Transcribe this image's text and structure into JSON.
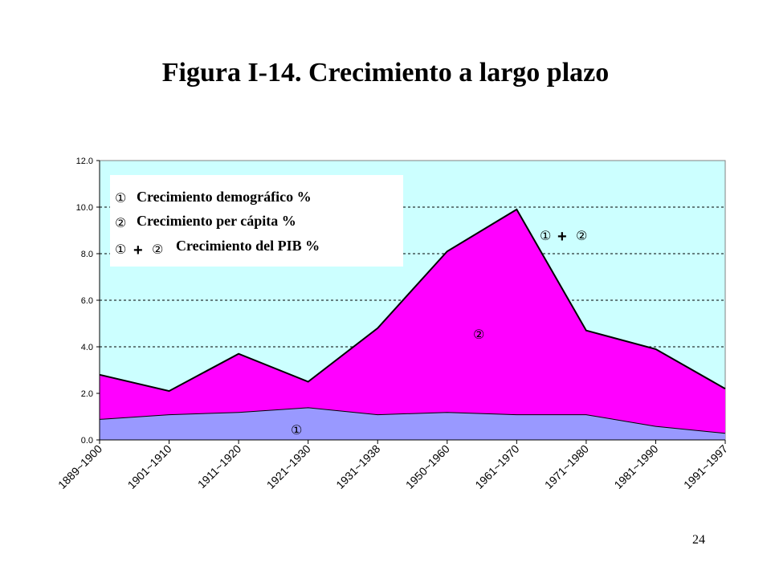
{
  "page": {
    "title": "Figura I-14. Crecimiento a largo plazo",
    "page_number": "24"
  },
  "chart_data": {
    "type": "area",
    "stacked": true,
    "title": "Figura I-14. Crecimiento a largo plazo",
    "xlabel": "",
    "ylabel": "",
    "ylim": [
      0,
      12
    ],
    "yticks": [
      "0.0",
      "2.0",
      "4.0",
      "6.0",
      "8.0",
      "10.0",
      "12.0"
    ],
    "grid": "horizontal dashed",
    "categories": [
      "1889~1900",
      "1901~1910",
      "1911~1920",
      "1921~1930",
      "1931~1938",
      "1950~1960",
      "1961~1970",
      "1971~1980",
      "1981~1990",
      "1991~1997"
    ],
    "series": [
      {
        "name": "Crecimiento demográfico %",
        "marker": "①",
        "color": "#9999ff",
        "values": [
          0.9,
          1.1,
          1.2,
          1.4,
          1.1,
          1.2,
          1.1,
          1.1,
          0.6,
          0.3
        ]
      },
      {
        "name": "Crecimiento per cápita %",
        "marker": "②",
        "color": "#ff00ff",
        "values": [
          1.9,
          1.0,
          2.5,
          1.1,
          3.7,
          6.9,
          8.8,
          3.6,
          3.3,
          1.9
        ]
      }
    ],
    "total": {
      "name": "Crecimiento del PIB %",
      "marker_a": "①",
      "plus": "+",
      "marker_b": "②",
      "values": [
        2.8,
        2.1,
        3.7,
        2.5,
        4.8,
        8.1,
        9.9,
        4.7,
        3.9,
        2.2
      ]
    },
    "colors": {
      "plot_background": "#ccffff",
      "legend_background": "#ffffff"
    },
    "legend": {
      "position": "top-left",
      "row1": {
        "marker": "①",
        "label": "Crecimiento demográfico %"
      },
      "row2": {
        "marker": "②",
        "label": "Crecimiento per cápita %"
      },
      "row3": {
        "marker_a": "①",
        "plus": "+",
        "marker_b": "②",
        "label": "Crecimiento del PIB %"
      }
    },
    "annotations": {
      "series1": "①",
      "series2": "②",
      "total_a": "①",
      "total_plus": "+",
      "total_b": "②"
    }
  }
}
